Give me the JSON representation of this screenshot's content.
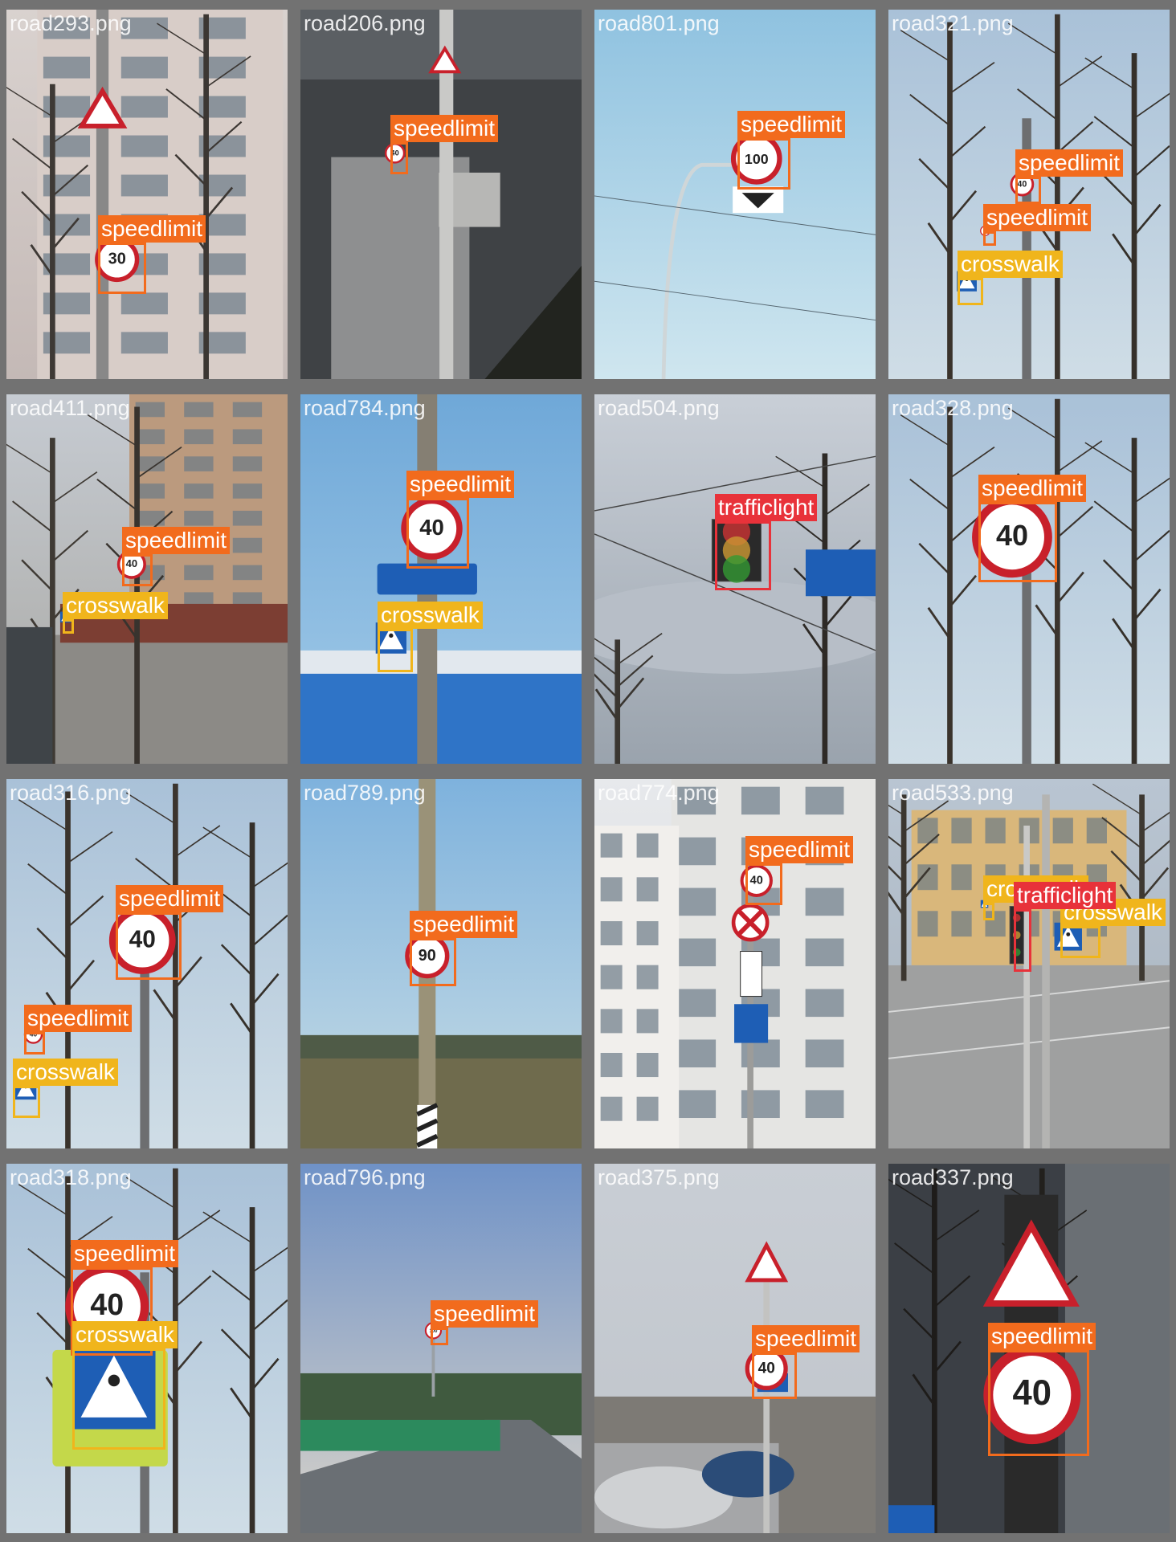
{
  "colors": {
    "speedlimit": "#f26b1d",
    "crosswalk": "#f0b51c",
    "trafficlight": "#e8323a",
    "frame": "#727272"
  },
  "tiles": [
    {
      "file": "road293.png",
      "scene": "building",
      "detections": [
        {
          "label": "speedlimit",
          "sign": "30"
        }
      ]
    },
    {
      "file": "road206.png",
      "scene": "bridge",
      "detections": [
        {
          "label": "speedlimit",
          "sign": "40"
        }
      ]
    },
    {
      "file": "road801.png",
      "scene": "sky",
      "detections": [
        {
          "label": "speedlimit",
          "sign": "100"
        }
      ]
    },
    {
      "file": "road321.png",
      "scene": "trees",
      "detections": [
        {
          "label": "speedlimit",
          "sign": "40"
        },
        {
          "label": "speedlimit",
          "sign": "40"
        },
        {
          "label": "crosswalk",
          "sign": ""
        }
      ]
    },
    {
      "file": "road411.png",
      "scene": "street",
      "detections": [
        {
          "label": "speedlimit",
          "sign": "40"
        },
        {
          "label": "crosswalk",
          "sign": ""
        }
      ]
    },
    {
      "file": "road784.png",
      "scene": "market",
      "detections": [
        {
          "label": "speedlimit",
          "sign": "40"
        },
        {
          "label": "crosswalk",
          "sign": ""
        }
      ]
    },
    {
      "file": "road504.png",
      "scene": "cloudy",
      "detections": [
        {
          "label": "trafficlight",
          "sign": ""
        }
      ]
    },
    {
      "file": "road328.png",
      "scene": "trees",
      "detections": [
        {
          "label": "speedlimit",
          "sign": "40"
        }
      ]
    },
    {
      "file": "road316.png",
      "scene": "trees",
      "detections": [
        {
          "label": "speedlimit",
          "sign": "40"
        },
        {
          "label": "speedlimit",
          "sign": "40"
        },
        {
          "label": "crosswalk",
          "sign": ""
        }
      ]
    },
    {
      "file": "road789.png",
      "scene": "field",
      "detections": [
        {
          "label": "speedlimit",
          "sign": "90"
        }
      ]
    },
    {
      "file": "road774.png",
      "scene": "facade",
      "detections": [
        {
          "label": "speedlimit",
          "sign": "40"
        }
      ]
    },
    {
      "file": "road533.png",
      "scene": "intersection",
      "detections": [
        {
          "label": "crosswalk",
          "sign": ""
        },
        {
          "label": "crosswalk",
          "sign": ""
        },
        {
          "label": "trafficlight",
          "sign": ""
        }
      ]
    },
    {
      "file": "road318.png",
      "scene": "trees",
      "detections": [
        {
          "label": "speedlimit",
          "sign": "40"
        },
        {
          "label": "crosswalk",
          "sign": ""
        }
      ]
    },
    {
      "file": "road796.png",
      "scene": "highway",
      "detections": [
        {
          "label": "speedlimit",
          "sign": "100"
        }
      ]
    },
    {
      "file": "road375.png",
      "scene": "parking",
      "detections": [
        {
          "label": "speedlimit",
          "sign": "40"
        }
      ]
    },
    {
      "file": "road337.png",
      "scene": "dark",
      "detections": [
        {
          "label": "speedlimit",
          "sign": "40"
        }
      ]
    }
  ]
}
